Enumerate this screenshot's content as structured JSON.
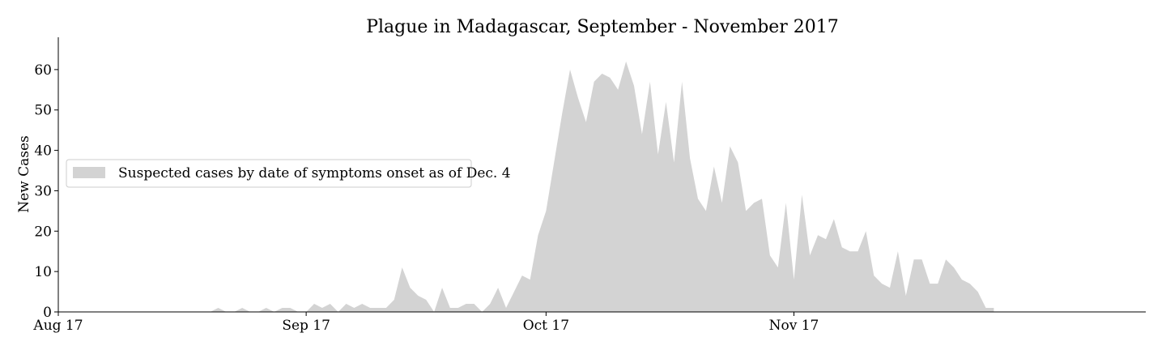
{
  "chart_data": {
    "type": "area",
    "title": "Plague in Madagascar, September - November 2017",
    "xlabel": "",
    "ylabel": "New Cases",
    "x_start": "2017-08-17",
    "x_end": "2017-12-31",
    "x_ticks": [
      {
        "date": "2017-08-17",
        "label": "Aug 17"
      },
      {
        "date": "2017-09-17",
        "label": "Sep 17"
      },
      {
        "date": "2017-10-17",
        "label": "Oct 17"
      },
      {
        "date": "2017-11-17",
        "label": "Nov 17"
      }
    ],
    "ylim": [
      0,
      68
    ],
    "y_ticks": [
      0,
      10,
      20,
      30,
      40,
      50,
      60
    ],
    "grid": false,
    "legend_position": "center-left",
    "series": [
      {
        "name": "Suspected cases by date of symptoms onset as of Dec. 4",
        "color": "#d3d3d3",
        "points": [
          [
            "2017-08-15",
            0
          ],
          [
            "2017-09-05",
            0
          ],
          [
            "2017-09-06",
            1
          ],
          [
            "2017-09-07",
            0
          ],
          [
            "2017-09-08",
            0
          ],
          [
            "2017-09-09",
            1
          ],
          [
            "2017-09-10",
            0
          ],
          [
            "2017-09-11",
            0
          ],
          [
            "2017-09-12",
            1
          ],
          [
            "2017-09-13",
            0
          ],
          [
            "2017-09-14",
            1
          ],
          [
            "2017-09-15",
            1
          ],
          [
            "2017-09-16",
            0
          ],
          [
            "2017-09-17",
            0
          ],
          [
            "2017-09-18",
            2
          ],
          [
            "2017-09-19",
            1
          ],
          [
            "2017-09-20",
            2
          ],
          [
            "2017-09-21",
            0
          ],
          [
            "2017-09-22",
            2
          ],
          [
            "2017-09-23",
            1
          ],
          [
            "2017-09-24",
            2
          ],
          [
            "2017-09-25",
            1
          ],
          [
            "2017-09-26",
            1
          ],
          [
            "2017-09-27",
            1
          ],
          [
            "2017-09-28",
            3
          ],
          [
            "2017-09-29",
            11
          ],
          [
            "2017-09-30",
            6
          ],
          [
            "2017-10-01",
            4
          ],
          [
            "2017-10-02",
            3
          ],
          [
            "2017-10-03",
            0
          ],
          [
            "2017-10-04",
            6
          ],
          [
            "2017-10-05",
            1
          ],
          [
            "2017-10-06",
            1
          ],
          [
            "2017-10-07",
            2
          ],
          [
            "2017-10-08",
            2
          ],
          [
            "2017-10-09",
            0
          ],
          [
            "2017-10-10",
            2
          ],
          [
            "2017-10-11",
            6
          ],
          [
            "2017-10-12",
            1
          ],
          [
            "2017-10-13",
            5
          ],
          [
            "2017-10-14",
            9
          ],
          [
            "2017-10-15",
            8
          ],
          [
            "2017-10-16",
            19
          ],
          [
            "2017-10-17",
            25
          ],
          [
            "2017-10-18",
            37
          ],
          [
            "2017-10-19",
            49
          ],
          [
            "2017-10-20",
            60
          ],
          [
            "2017-10-21",
            53
          ],
          [
            "2017-10-22",
            47
          ],
          [
            "2017-10-23",
            57
          ],
          [
            "2017-10-24",
            59
          ],
          [
            "2017-10-25",
            58
          ],
          [
            "2017-10-26",
            55
          ],
          [
            "2017-10-27",
            62
          ],
          [
            "2017-10-28",
            56
          ],
          [
            "2017-10-29",
            44
          ],
          [
            "2017-10-30",
            57
          ],
          [
            "2017-10-31",
            39
          ],
          [
            "2017-11-01",
            52
          ],
          [
            "2017-11-02",
            37
          ],
          [
            "2017-11-03",
            57
          ],
          [
            "2017-11-04",
            38
          ],
          [
            "2017-11-05",
            28
          ],
          [
            "2017-11-06",
            25
          ],
          [
            "2017-11-07",
            36
          ],
          [
            "2017-11-08",
            27
          ],
          [
            "2017-11-09",
            41
          ],
          [
            "2017-11-10",
            37
          ],
          [
            "2017-11-11",
            25
          ],
          [
            "2017-11-12",
            27
          ],
          [
            "2017-11-13",
            28
          ],
          [
            "2017-11-14",
            14
          ],
          [
            "2017-11-15",
            11
          ],
          [
            "2017-11-16",
            27
          ],
          [
            "2017-11-17",
            8
          ],
          [
            "2017-11-18",
            29
          ],
          [
            "2017-11-19",
            14
          ],
          [
            "2017-11-20",
            19
          ],
          [
            "2017-11-21",
            18
          ],
          [
            "2017-11-22",
            23
          ],
          [
            "2017-11-23",
            16
          ],
          [
            "2017-11-24",
            15
          ],
          [
            "2017-11-25",
            15
          ],
          [
            "2017-11-26",
            20
          ],
          [
            "2017-11-27",
            9
          ],
          [
            "2017-11-28",
            7
          ],
          [
            "2017-11-29",
            6
          ],
          [
            "2017-11-30",
            15
          ],
          [
            "2017-12-01",
            4
          ],
          [
            "2017-12-02",
            13
          ],
          [
            "2017-12-03",
            13
          ],
          [
            "2017-12-04",
            7
          ],
          [
            "2017-12-05",
            7
          ],
          [
            "2017-12-06",
            13
          ],
          [
            "2017-12-07",
            11
          ],
          [
            "2017-12-08",
            8
          ],
          [
            "2017-12-09",
            7
          ],
          [
            "2017-12-10",
            5
          ],
          [
            "2017-12-11",
            1
          ],
          [
            "2017-12-12",
            1
          ]
        ]
      }
    ]
  }
}
